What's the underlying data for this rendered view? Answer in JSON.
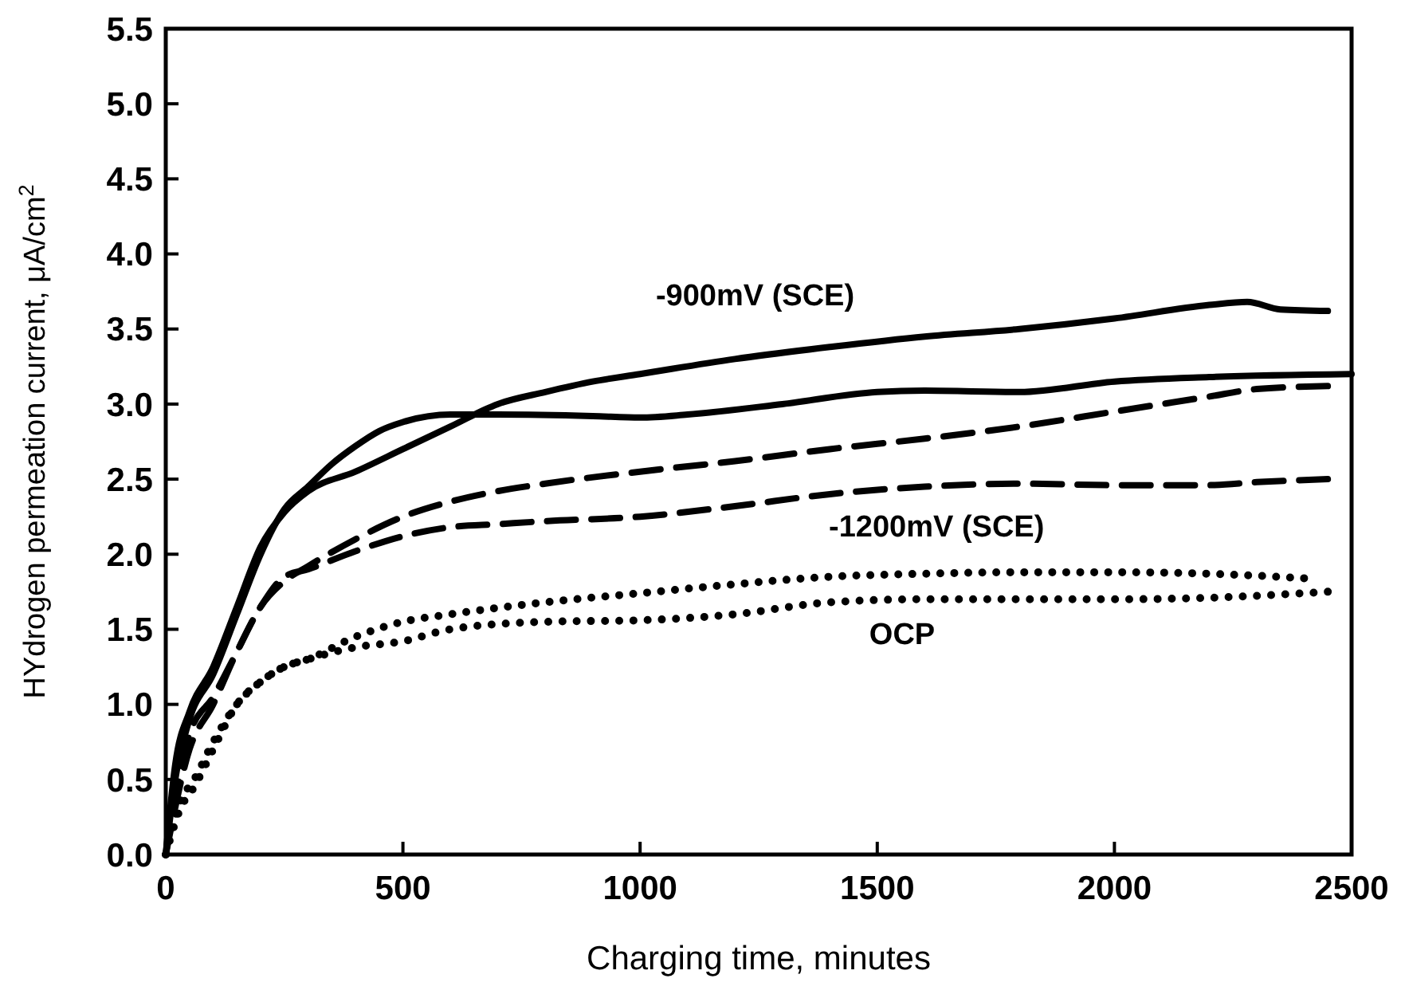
{
  "chart_data": {
    "type": "line",
    "xlabel": "Charging time, minutes",
    "ylabel": "HYdrogen permeation current, μA/cm$^{2}$",
    "xlim": [
      0,
      2500
    ],
    "xticks": [
      0,
      500,
      1000,
      1500,
      2000,
      2500
    ],
    "ylim": [
      0,
      5.5
    ],
    "yticks": [
      {
        "value": 0,
        "label": "0.0"
      },
      {
        "value": 0.5,
        "label": "0.5"
      },
      {
        "value": 1,
        "label": "1.0"
      },
      {
        "value": 1.5,
        "label": "1.5"
      },
      {
        "value": 2,
        "label": "2.0"
      },
      {
        "value": 2.5,
        "label": "2.5"
      },
      {
        "value": 3,
        "label": "3.0"
      },
      {
        "value": 3.5,
        "label": "3.5"
      },
      {
        "value": 4,
        "label": "4.0"
      },
      {
        "value": 4.5,
        "label": "4.5"
      },
      {
        "value": 5,
        "label": "5.0"
      },
      {
        "value": 5.5,
        "label": "5.5"
      }
    ],
    "grid": false,
    "series": [
      {
        "color": "#000000",
        "line_style": "solid",
        "x": [
          0,
          20,
          50,
          100,
          150,
          200,
          250,
          300,
          400,
          500,
          600,
          700,
          800,
          900,
          1000,
          1200,
          1400,
          1600,
          1800,
          2000,
          2200,
          2280,
          2350,
          2450
        ],
        "values": [
          0,
          0.6,
          0.95,
          1.25,
          1.65,
          2.05,
          2.28,
          2.42,
          2.55,
          2.7,
          2.85,
          3.0,
          3.08,
          3.15,
          3.2,
          3.3,
          3.38,
          3.45,
          3.5,
          3.57,
          3.66,
          3.68,
          3.63,
          3.62
        ]
      },
      {
        "color": "#000000",
        "line_style": "solid",
        "x": [
          0,
          20,
          50,
          100,
          150,
          200,
          250,
          300,
          350,
          400,
          450,
          500,
          600,
          700,
          900,
          1000,
          1100,
          1300,
          1500,
          1600,
          1800,
          2000,
          2200,
          2500
        ],
        "values": [
          0,
          0.5,
          0.9,
          1.2,
          1.6,
          2.0,
          2.3,
          2.45,
          2.6,
          2.72,
          2.82,
          2.88,
          2.93,
          2.93,
          2.92,
          2.91,
          2.93,
          3.0,
          3.08,
          3.09,
          3.08,
          3.15,
          3.18,
          3.2
        ]
      },
      {
        "color": "#000000",
        "line_style": "dashed",
        "x": [
          0,
          50,
          100,
          150,
          200,
          250,
          300,
          400,
          500,
          600,
          700,
          800,
          1000,
          1200,
          1400,
          1600,
          1800,
          2000,
          2200,
          2300,
          2450
        ],
        "values": [
          0,
          0.8,
          1.05,
          1.35,
          1.65,
          1.82,
          1.92,
          2.1,
          2.25,
          2.35,
          2.42,
          2.47,
          2.55,
          2.62,
          2.7,
          2.77,
          2.85,
          2.95,
          3.05,
          3.1,
          3.12
        ]
      },
      {
        "color": "#000000",
        "line_style": "dashed",
        "x": [
          0,
          50,
          100,
          150,
          200,
          250,
          300,
          400,
          500,
          600,
          700,
          800,
          1000,
          1200,
          1400,
          1600,
          1800,
          2000,
          2200,
          2300,
          2450
        ],
        "values": [
          0,
          0.7,
          1.0,
          1.35,
          1.65,
          1.85,
          1.9,
          2.02,
          2.12,
          2.18,
          2.2,
          2.22,
          2.25,
          2.32,
          2.4,
          2.45,
          2.47,
          2.46,
          2.46,
          2.48,
          2.5
        ]
      },
      {
        "color": "#000000",
        "line_style": "dotted",
        "x": [
          0,
          30,
          60,
          100,
          150,
          200,
          250,
          300,
          400,
          500,
          600,
          800,
          1000,
          1200,
          1400,
          1600,
          1800,
          2000,
          2200,
          2400
        ],
        "values": [
          0,
          0.35,
          0.5,
          0.75,
          1.0,
          1.15,
          1.25,
          1.3,
          1.45,
          1.55,
          1.6,
          1.68,
          1.74,
          1.8,
          1.85,
          1.87,
          1.88,
          1.88,
          1.87,
          1.84
        ]
      },
      {
        "color": "#000000",
        "line_style": "dotted",
        "x": [
          0,
          30,
          60,
          100,
          150,
          200,
          250,
          300,
          400,
          500,
          600,
          800,
          1000,
          1200,
          1400,
          1600,
          1800,
          2000,
          2200,
          2450
        ],
        "values": [
          0,
          0.3,
          0.45,
          0.7,
          1.0,
          1.15,
          1.25,
          1.3,
          1.38,
          1.42,
          1.5,
          1.55,
          1.56,
          1.6,
          1.68,
          1.7,
          1.7,
          1.7,
          1.71,
          1.75
        ]
      }
    ],
    "annotations": [
      "-900mV (SCE)",
      "-1200mV (SCE)",
      "OCP"
    ]
  }
}
